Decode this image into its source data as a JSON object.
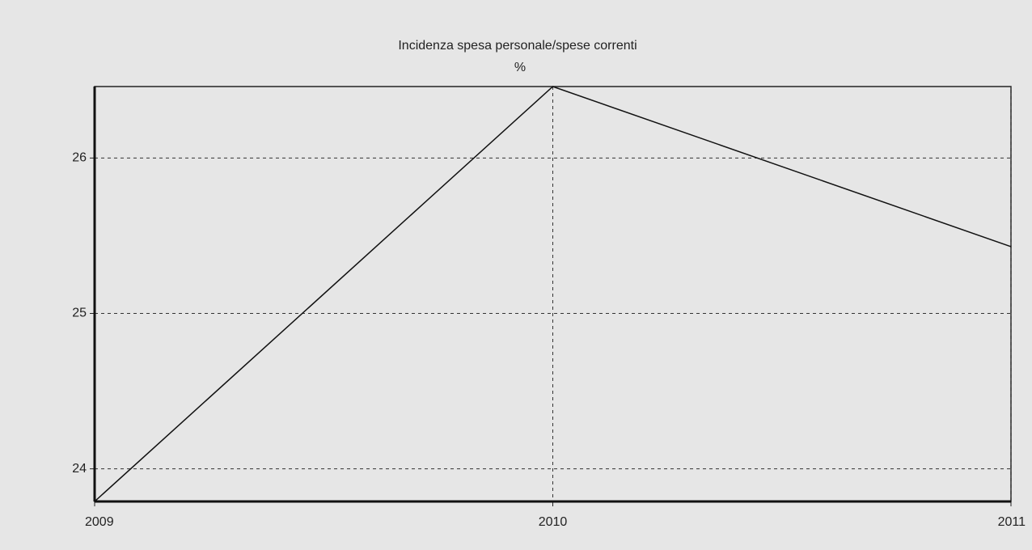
{
  "chart_data": {
    "type": "line",
    "title": "Incidenza spesa personale/spese correnti",
    "subtitle": "%",
    "x": [
      2009,
      2010,
      2011
    ],
    "values": [
      23.79,
      26.46,
      25.43
    ],
    "color": "#111111",
    "xlim": [
      2009,
      2011
    ],
    "xticks": [
      2009,
      2010,
      2011
    ],
    "ylim": [
      23.79,
      26.46
    ],
    "yticks": [
      24,
      25,
      26
    ],
    "grid": true
  }
}
